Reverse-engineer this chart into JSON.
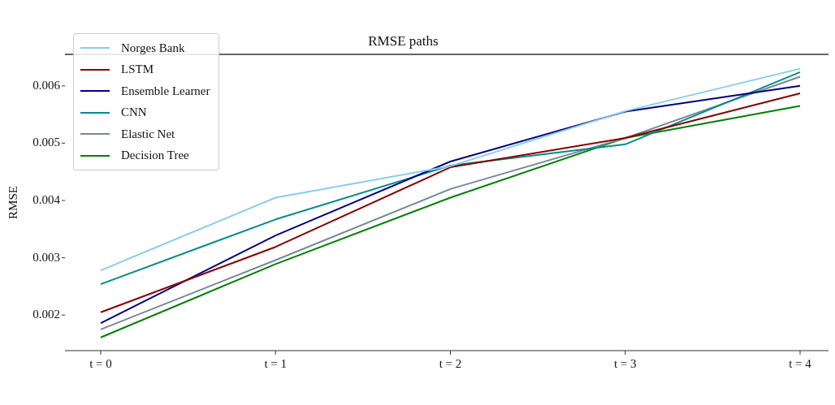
{
  "chart_data": {
    "type": "line",
    "title": "RMSE paths",
    "ylabel": "RMSE",
    "categories": [
      "t = 0",
      "t = 1",
      "t = 2",
      "t = 3",
      "t = 4"
    ],
    "ylim": [
      0.00138,
      0.00655
    ],
    "yticks": [
      0.002,
      0.003,
      0.004,
      0.005,
      0.006
    ],
    "grid": false,
    "legend": "top left",
    "marker": "none",
    "line_style": "solid",
    "series": [
      {
        "name": "Norges Bank",
        "color": "#87ceeb",
        "values": [
          0.00278,
          0.00405,
          0.0046,
          0.00556,
          0.0063
        ]
      },
      {
        "name": "LSTM",
        "color": "#8b0000",
        "values": [
          0.00205,
          0.00319,
          0.00458,
          0.00509,
          0.00587
        ]
      },
      {
        "name": "Ensemble Learner",
        "color": "#00008b",
        "values": [
          0.00186,
          0.00339,
          0.00468,
          0.00555,
          0.006
        ]
      },
      {
        "name": "CNN",
        "color": "#008b8b",
        "values": [
          0.00254,
          0.00367,
          0.00461,
          0.00498,
          0.00624
        ]
      },
      {
        "name": "Elastic Net",
        "color": "#778899",
        "values": [
          0.00175,
          0.00296,
          0.0042,
          0.00509,
          0.00616
        ]
      },
      {
        "name": "Decision Tree",
        "color": "#008000",
        "values": [
          0.00161,
          0.00289,
          0.00405,
          0.00509,
          0.00565
        ]
      }
    ]
  }
}
